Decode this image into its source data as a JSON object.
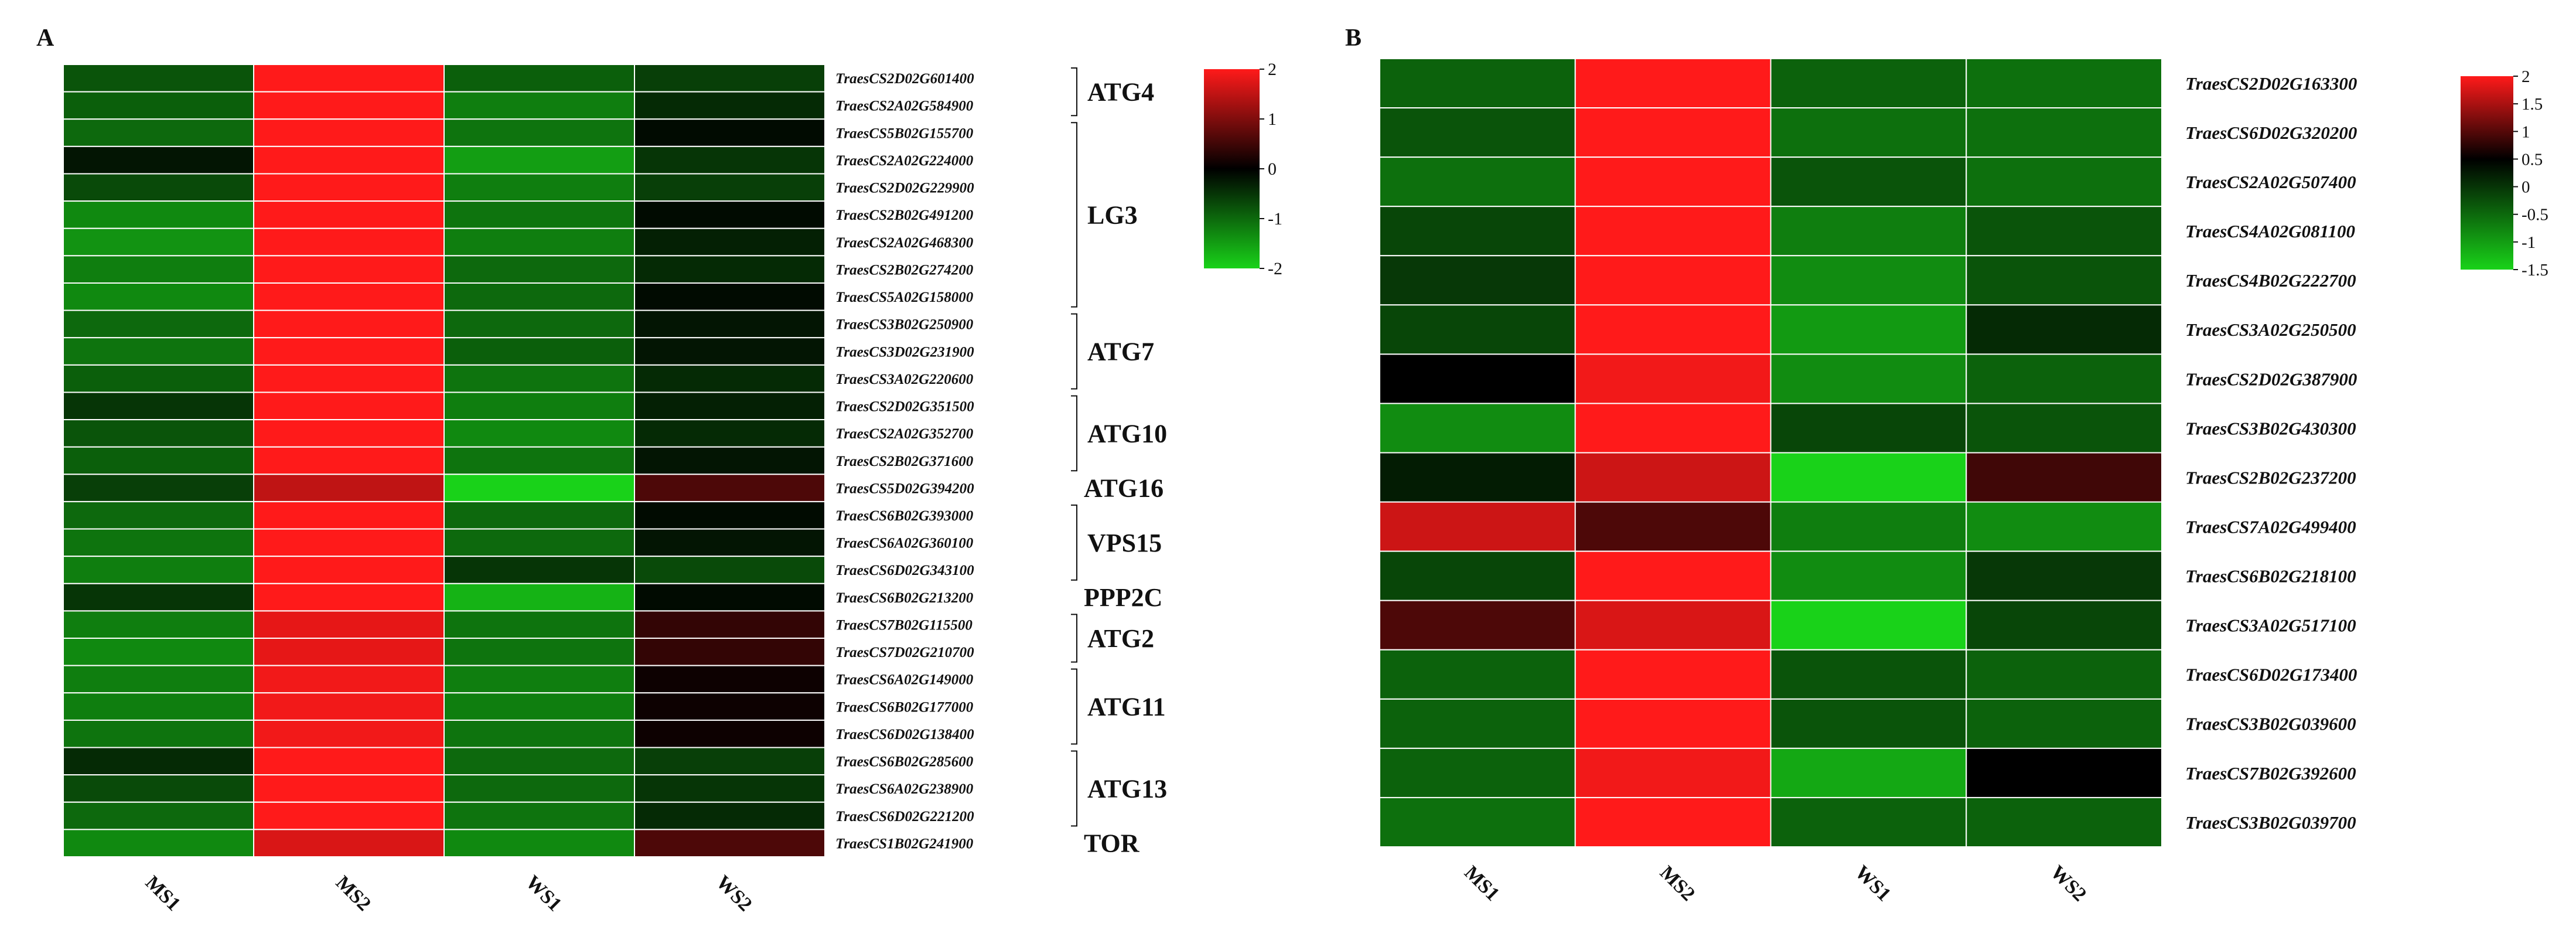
{
  "chart_data": [
    {
      "type": "heatmap",
      "panel": "A",
      "samples": [
        "MS1",
        "MS2",
        "WS1",
        "WS2"
      ],
      "colorbar": {
        "min": -2,
        "max": 2,
        "ticks": [
          "2",
          "1",
          "0",
          "-1",
          "-2"
        ]
      },
      "genes": [
        "TraesCS2D02G601400",
        "TraesCS2A02G584900",
        "TraesCS5B02G155700",
        "TraesCS2A02G224000",
        "TraesCS2D02G229900",
        "TraesCS2B02G491200",
        "TraesCS2A02G468300",
        "TraesCS2B02G274200",
        "TraesCS5A02G158000",
        "TraesCS3B02G250900",
        "TraesCS3D02G231900",
        "TraesCS3A02G220600",
        "TraesCS2D02G351500",
        "TraesCS2A02G352700",
        "TraesCS2B02G371600",
        "TraesCS5D02G394200",
        "TraesCS6B02G393000",
        "TraesCS6A02G360100",
        "TraesCS6D02G343100",
        "TraesCS6B02G213200",
        "TraesCS7B02G115500",
        "TraesCS7D02G210700",
        "TraesCS6A02G149000",
        "TraesCS6B02G177000",
        "TraesCS6D02G138400",
        "TraesCS6B02G285600",
        "TraesCS6A02G238900",
        "TraesCS6D02G221200",
        "TraesCS1B02G241900"
      ],
      "values": [
        [
          -0.8,
          2.0,
          -0.9,
          -0.6
        ],
        [
          -0.9,
          2.0,
          -1.2,
          -0.4
        ],
        [
          -1.0,
          2.0,
          -1.1,
          -0.1
        ],
        [
          -0.2,
          2.0,
          -1.5,
          -0.5
        ],
        [
          -0.7,
          2.0,
          -1.2,
          -0.6
        ],
        [
          -1.3,
          2.0,
          -1.1,
          -0.1
        ],
        [
          -1.4,
          2.0,
          -1.2,
          -0.3
        ],
        [
          -1.2,
          2.0,
          -1.0,
          -0.4
        ],
        [
          -1.3,
          2.0,
          -1.0,
          -0.1
        ],
        [
          -1.0,
          2.0,
          -1.0,
          -0.2
        ],
        [
          -1.1,
          2.0,
          -0.9,
          -0.2
        ],
        [
          -0.9,
          2.0,
          -1.1,
          -0.4
        ],
        [
          -0.5,
          2.0,
          -1.2,
          -0.3
        ],
        [
          -0.8,
          2.0,
          -1.3,
          -0.4
        ],
        [
          -0.9,
          2.0,
          -1.1,
          -0.2
        ],
        [
          -0.6,
          1.5,
          -2.0,
          0.6
        ],
        [
          -1.0,
          2.0,
          -1.0,
          -0.1
        ],
        [
          -1.1,
          2.0,
          -1.0,
          -0.2
        ],
        [
          -1.2,
          2.0,
          -0.5,
          -0.7
        ],
        [
          -0.5,
          2.0,
          -1.7,
          -0.1
        ],
        [
          -1.2,
          1.8,
          -1.1,
          0.4
        ],
        [
          -1.3,
          1.8,
          -1.1,
          0.4
        ],
        [
          -1.2,
          1.9,
          -1.2,
          0.1
        ],
        [
          -1.2,
          1.9,
          -1.2,
          0.1
        ],
        [
          -1.1,
          1.9,
          -1.1,
          0.1
        ],
        [
          -0.4,
          2.0,
          -1.0,
          -0.6
        ],
        [
          -0.7,
          2.0,
          -1.0,
          -0.5
        ],
        [
          -1.0,
          2.0,
          -1.1,
          -0.4
        ],
        [
          -1.3,
          1.7,
          -1.3,
          0.6
        ]
      ],
      "groups": [
        {
          "label": "ATG4",
          "start": 0,
          "end": 1
        },
        {
          "label": "LG3",
          "start": 2,
          "end": 8
        },
        {
          "label": "ATG7",
          "start": 9,
          "end": 11
        },
        {
          "label": "ATG10",
          "start": 12,
          "end": 14
        },
        {
          "label": "ATG16",
          "start": 15,
          "end": 15
        },
        {
          "label": "VPS15",
          "start": 16,
          "end": 18
        },
        {
          "label": "PPP2C",
          "start": 19,
          "end": 19
        },
        {
          "label": "ATG2",
          "start": 20,
          "end": 21
        },
        {
          "label": "ATG11",
          "start": 22,
          "end": 24
        },
        {
          "label": "ATG13",
          "start": 25,
          "end": 27
        },
        {
          "label": "TOR",
          "start": 28,
          "end": 28
        }
      ]
    },
    {
      "type": "heatmap",
      "panel": "B",
      "samples": [
        "MS1",
        "MS2",
        "WS1",
        "WS2"
      ],
      "colorbar": {
        "min": -1.5,
        "max": 2,
        "ticks": [
          "2",
          "1.5",
          "1",
          "0.5",
          "0",
          "-0.5",
          "-1",
          "-1.5"
        ]
      },
      "genes": [
        "TraesCS2D02G163300",
        "TraesCS6D02G320200",
        "TraesCS2A02G507400",
        "TraesCS4A02G081100",
        "TraesCS4B02G222700",
        "TraesCS3A02G250500",
        "TraesCS2D02G387900",
        "TraesCS3B02G430300",
        "TraesCS2B02G237200",
        "TraesCS7A02G499400",
        "TraesCS6B02G218100",
        "TraesCS3A02G517100",
        "TraesCS6D02G173400",
        "TraesCS3B02G039600",
        "TraesCS7B02G392600",
        "TraesCS3B02G039700"
      ],
      "values": [
        [
          -0.7,
          2.0,
          -0.7,
          -0.8
        ],
        [
          -0.6,
          2.0,
          -0.8,
          -0.8
        ],
        [
          -0.8,
          2.0,
          -0.6,
          -0.8
        ],
        [
          -0.5,
          2.0,
          -0.9,
          -0.6
        ],
        [
          -0.4,
          2.0,
          -1.0,
          -0.6
        ],
        [
          -0.5,
          2.0,
          -1.1,
          -0.3
        ],
        [
          0.0,
          1.9,
          -1.0,
          -0.7
        ],
        [
          -1.0,
          2.0,
          -0.5,
          -0.6
        ],
        [
          -0.2,
          1.6,
          -1.5,
          0.5
        ],
        [
          1.6,
          0.6,
          -0.9,
          -1.0
        ],
        [
          -0.5,
          2.0,
          -1.0,
          -0.4
        ],
        [
          0.6,
          1.7,
          -1.5,
          -0.5
        ],
        [
          -0.7,
          2.0,
          -0.6,
          -0.7
        ],
        [
          -0.7,
          2.0,
          -0.6,
          -0.7
        ],
        [
          -0.7,
          1.9,
          -1.2,
          0.0
        ],
        [
          -0.8,
          2.0,
          -0.7,
          -0.7
        ]
      ]
    }
  ]
}
